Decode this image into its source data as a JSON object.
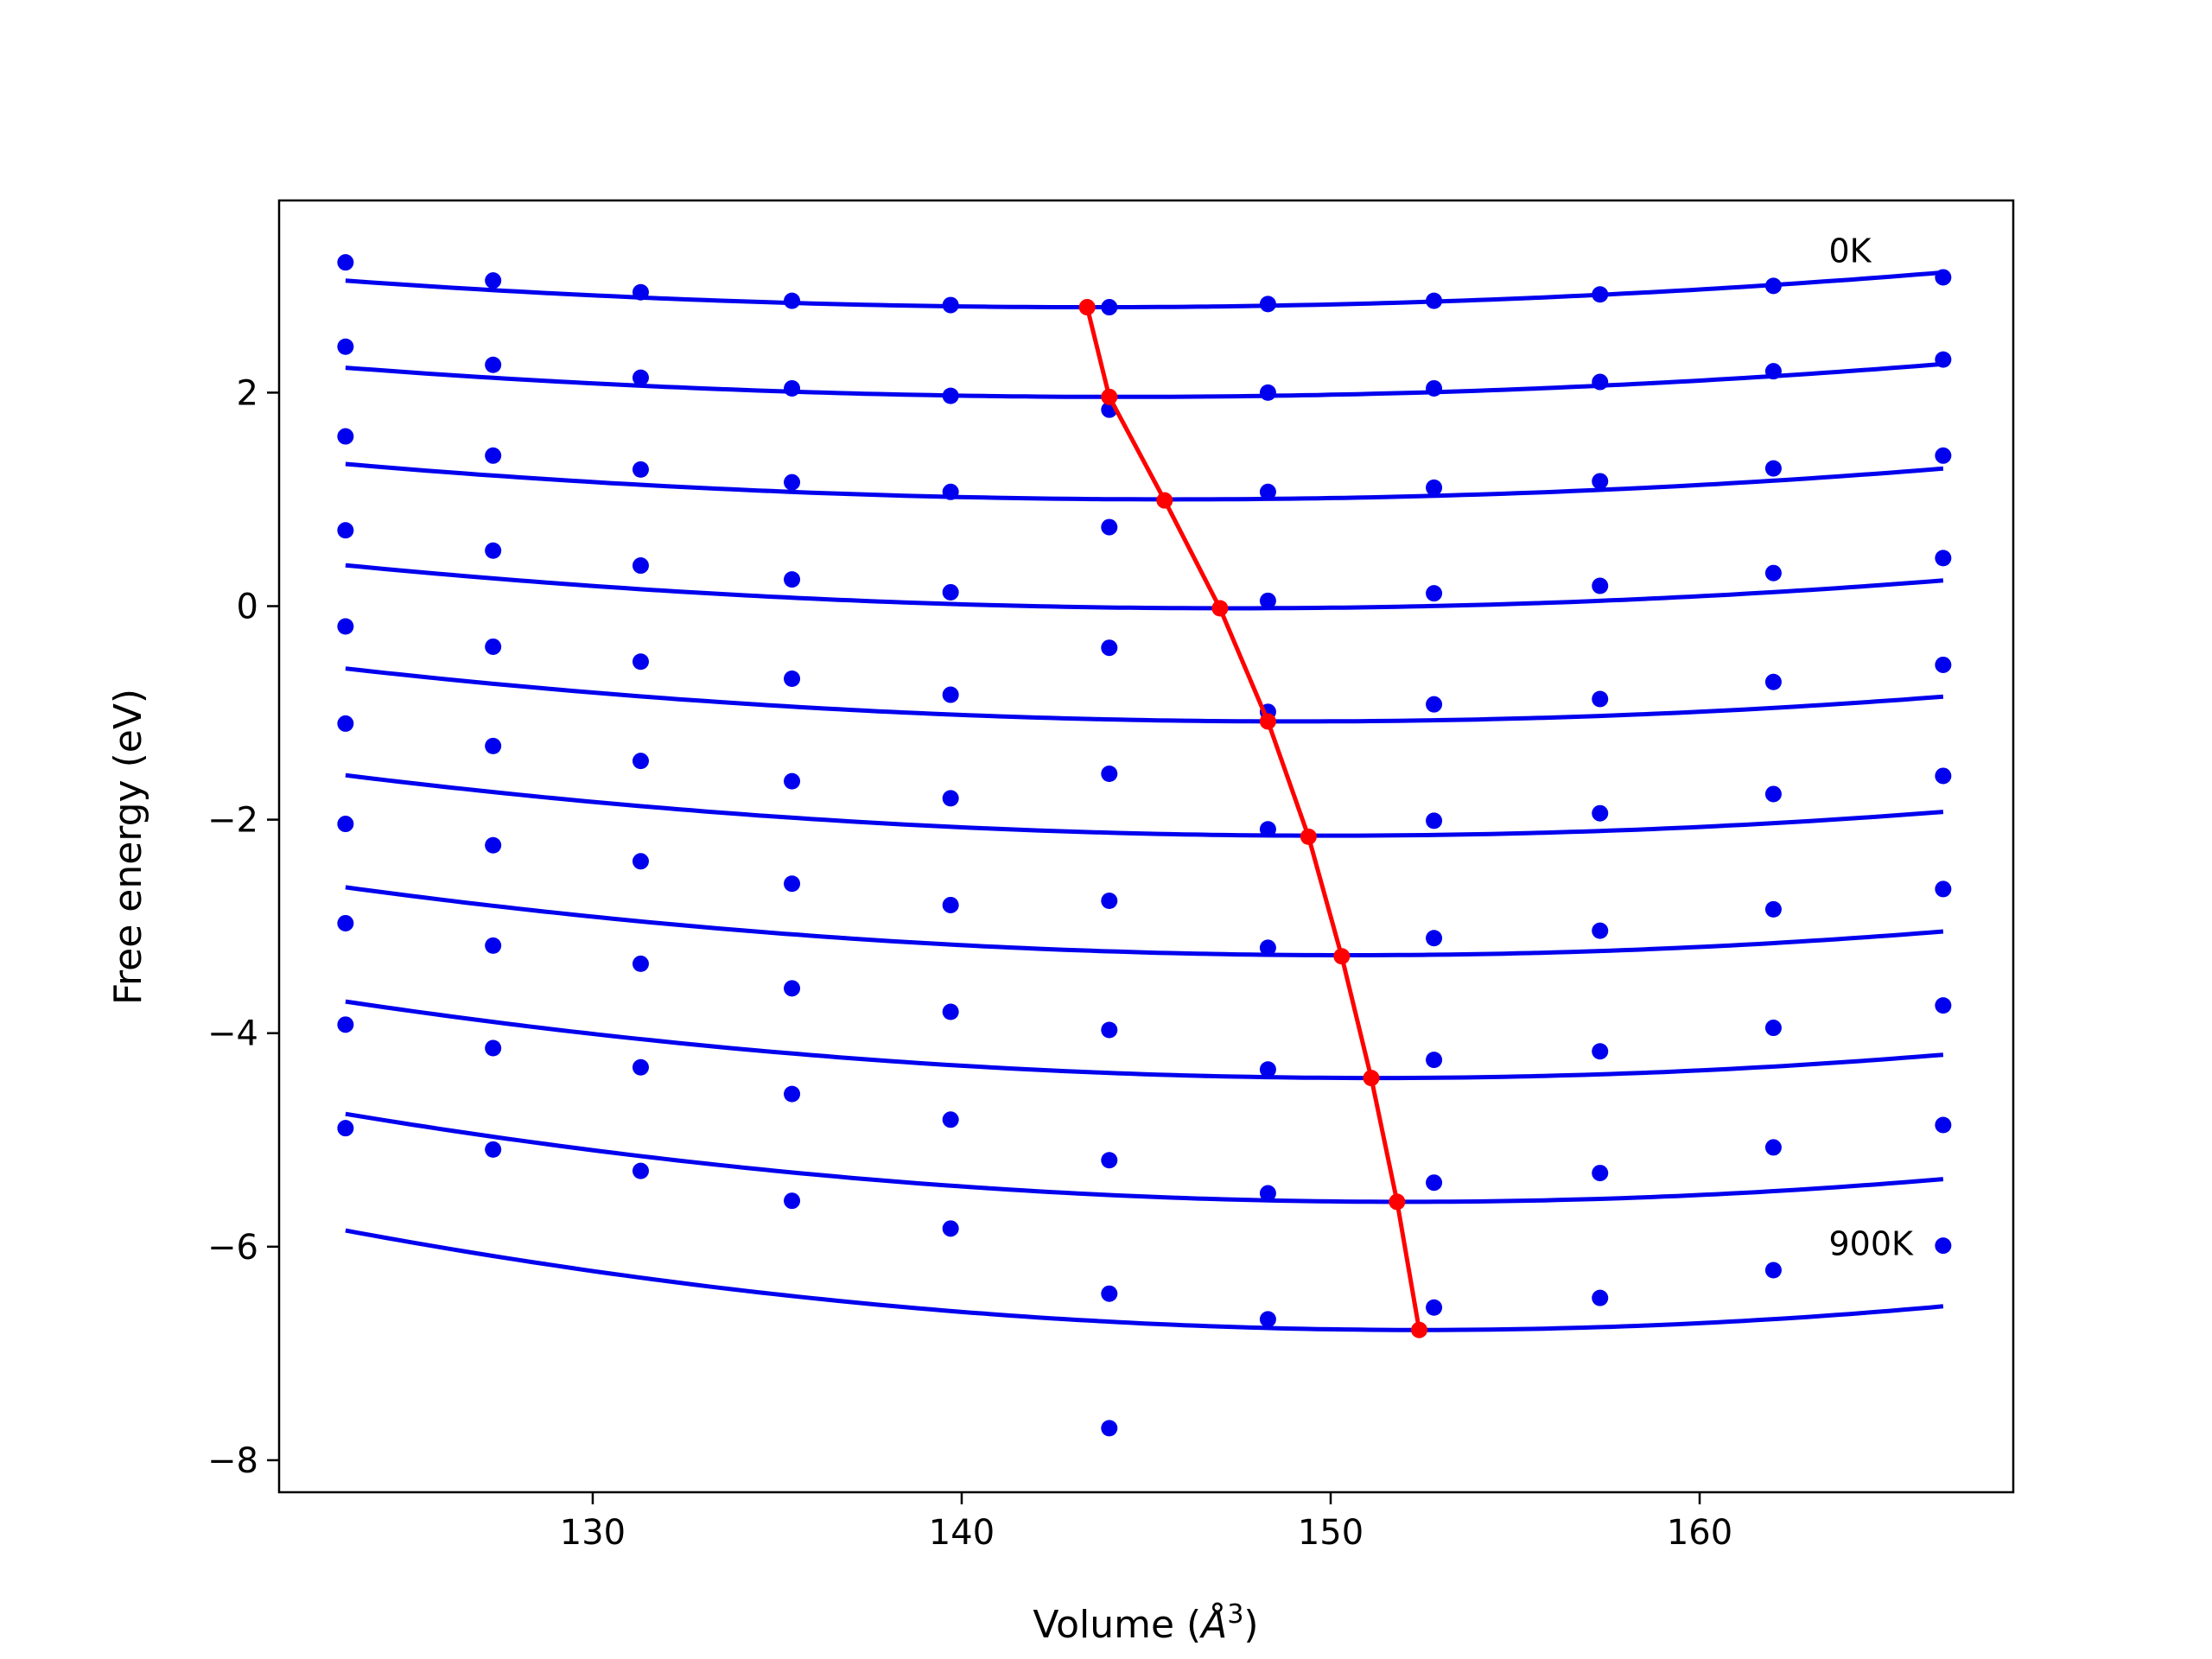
{
  "chart_data": {
    "type": "scatter",
    "xlabel_prefix": "Volume (",
    "xlabel_symbol": "Å",
    "xlabel_exp": "3",
    "xlabel_suffix": ")",
    "ylabel": "Free energy (eV)",
    "xlim": [
      121.5,
      168.5
    ],
    "ylim": [
      -8.3,
      3.8
    ],
    "x_ticks": [
      130,
      140,
      150,
      160
    ],
    "y_ticks": [
      2,
      0,
      -2,
      -4,
      -6,
      -8
    ],
    "y_tick_labels": [
      "2",
      "0",
      "−2",
      "−4",
      "−6",
      "−8"
    ],
    "grid": false,
    "colors": {
      "points": "#0000ee",
      "fits": "#0000ee",
      "minimum_line": "#ff0000"
    },
    "annotations": [
      {
        "text": "0K",
        "x": 163.5,
        "y": 3.22
      },
      {
        "text": "900K",
        "x": 163.5,
        "y": -6.08
      }
    ],
    "volumes": [
      123.3,
      127.3,
      131.3,
      135.4,
      139.7,
      144.0,
      148.3,
      152.8,
      157.3,
      162.0,
      166.6
    ],
    "series": [
      {
        "points": [
          3.22,
          3.05,
          2.94,
          2.86,
          2.82,
          2.8,
          2.83,
          2.86,
          2.92,
          3.0,
          3.08
        ],
        "fit": {
          "a": 0.00061,
          "v0": 143.5,
          "e0": 2.8
        }
      },
      {
        "points": [
          2.43,
          2.26,
          2.14,
          2.04,
          1.97,
          1.84,
          2.0,
          2.04,
          2.1,
          2.2,
          2.31
        ],
        "fit": {
          "a": 0.00062,
          "v0": 144.3,
          "e0": 1.96
        }
      },
      {
        "points": [
          1.59,
          1.41,
          1.28,
          1.16,
          1.07,
          0.74,
          1.07,
          1.11,
          1.17,
          1.29,
          1.41
        ],
        "fit": {
          "a": 0.00066,
          "v0": 145.7,
          "e0": 1.0
        }
      },
      {
        "points": [
          0.71,
          0.52,
          0.38,
          0.25,
          0.13,
          -0.39,
          0.05,
          0.12,
          0.19,
          0.31,
          0.45
        ],
        "fit": {
          "a": 0.0007,
          "v0": 147.3,
          "e0": -0.02
        }
      },
      {
        "points": [
          -0.19,
          -0.38,
          -0.52,
          -0.68,
          -0.83,
          -1.57,
          -0.99,
          -0.92,
          -0.87,
          -0.71,
          -0.55
        ],
        "fit": {
          "a": 0.00075,
          "v0": 149.0,
          "e0": -1.08
        }
      },
      {
        "points": [
          -1.1,
          -1.31,
          -1.45,
          -1.64,
          -1.8,
          -2.76,
          -2.09,
          -2.01,
          -1.94,
          -1.76,
          -1.59
        ],
        "fit": {
          "a": 0.0008,
          "v0": 149.9,
          "e0": -2.15
        }
      },
      {
        "points": [
          -2.04,
          -2.24,
          -2.39,
          -2.6,
          -2.8,
          -3.97,
          -3.2,
          -3.11,
          -3.04,
          -2.84,
          -2.65
        ],
        "fit": {
          "a": 0.00086,
          "v0": 150.5,
          "e0": -3.27
        }
      },
      {
        "points": [
          -2.97,
          -3.18,
          -3.35,
          -3.58,
          -3.8,
          -5.19,
          -4.34,
          -4.25,
          -4.17,
          -3.95,
          -3.74
        ],
        "fit": {
          "a": 0.00092,
          "v0": 151.2,
          "e0": -4.42
        }
      },
      {
        "points": [
          -3.92,
          -4.14,
          -4.32,
          -4.57,
          -4.81,
          -6.44,
          -5.5,
          -5.4,
          -5.31,
          -5.07,
          -4.86
        ],
        "fit": {
          "a": 0.001,
          "v0": 152.0,
          "e0": -5.58
        }
      },
      {
        "points": [
          -4.89,
          -5.09,
          -5.29,
          -5.57,
          -5.83,
          -7.7,
          -6.68,
          -6.57,
          -6.48,
          -6.22,
          -5.99
        ],
        "fit": {
          "a": 0.0011,
          "v0": 152.4,
          "e0": -6.78
        }
      }
    ],
    "minimum_line": {
      "x": [
        143.4,
        144.0,
        145.5,
        147.0,
        148.3,
        149.4,
        150.3,
        151.1,
        151.8,
        152.4
      ],
      "y": [
        2.8,
        1.96,
        0.99,
        -0.02,
        -1.08,
        -2.16,
        -3.28,
        -4.42,
        -5.58,
        -6.78
      ]
    }
  }
}
